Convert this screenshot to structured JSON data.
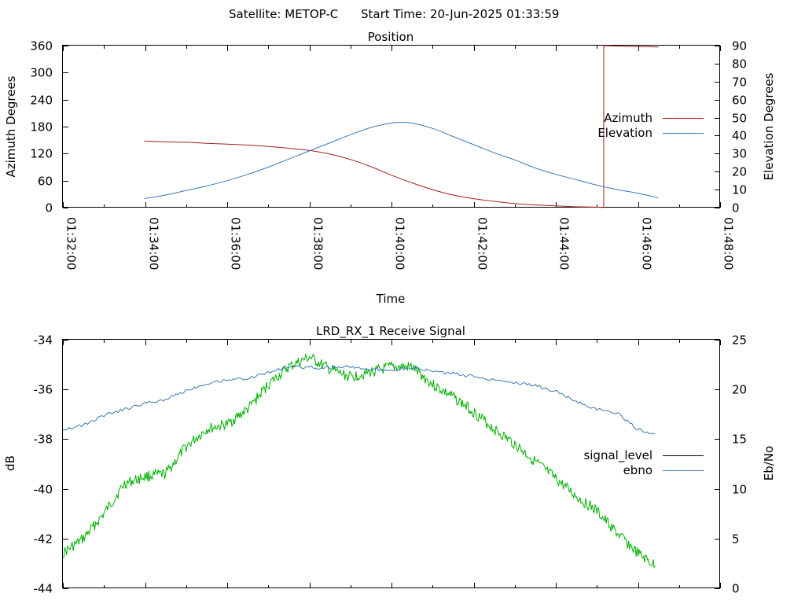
{
  "header": {
    "satellite_text": "Satellite: METOP-C",
    "start_time_text": "Start Time: 20-Jun-2025 01:33:59"
  },
  "chart_data": [
    {
      "type": "line",
      "title": "Position",
      "xlabel": "Time",
      "ylabel": "Azimuth Degrees",
      "y2label": "Elevation Degrees",
      "xlim": [
        "01:32:00",
        "01:48:00"
      ],
      "xticks": [
        "01:32:00",
        "01:34:00",
        "01:36:00",
        "01:38:00",
        "01:40:00",
        "01:42:00",
        "01:44:00",
        "01:46:00",
        "01:48:00"
      ],
      "ylim": [
        0,
        360
      ],
      "yticks": [
        "0",
        "60",
        "120",
        "180",
        "240",
        "300",
        "360"
      ],
      "y2lim": [
        0,
        90
      ],
      "y2ticks": [
        "0",
        "10",
        "20",
        "30",
        "40",
        "50",
        "60",
        "70",
        "80",
        "90"
      ],
      "grid": false,
      "legend_position": "right",
      "series": [
        {
          "name": "Azimuth",
          "axis": "left",
          "color": "#a81c1c",
          "x": [
            "01:33:59",
            "01:34:30",
            "01:35:00",
            "01:35:30",
            "01:36:00",
            "01:36:30",
            "01:37:00",
            "01:37:30",
            "01:38:00",
            "01:38:30",
            "01:39:00",
            "01:39:30",
            "01:40:00",
            "01:40:30",
            "01:41:00",
            "01:41:30",
            "01:42:00",
            "01:42:30",
            "01:43:00",
            "01:43:30",
            "01:44:00",
            "01:44:30",
            "01:45:00",
            "01:45:10",
            "01:45:10",
            "01:45:30",
            "01:46:00",
            "01:46:30"
          ],
          "values": [
            148,
            146,
            145,
            143,
            141,
            139,
            136,
            132,
            127,
            119,
            107,
            91,
            72,
            55,
            40,
            28,
            20,
            14,
            9,
            6,
            4,
            2,
            1,
            0,
            360,
            359,
            358,
            357
          ]
        },
        {
          "name": "Elevation",
          "axis": "right",
          "color": "#3a78b5",
          "x": [
            "01:33:59",
            "01:34:30",
            "01:35:00",
            "01:35:30",
            "01:36:00",
            "01:36:30",
            "01:37:00",
            "01:37:30",
            "01:38:00",
            "01:38:30",
            "01:39:00",
            "01:39:30",
            "01:40:00",
            "01:40:15",
            "01:40:30",
            "01:41:00",
            "01:41:30",
            "01:42:00",
            "01:42:30",
            "01:43:00",
            "01:43:30",
            "01:44:00",
            "01:44:30",
            "01:45:00",
            "01:45:30",
            "01:46:00",
            "01:46:30"
          ],
          "values": [
            5,
            7,
            9.5,
            12,
            15,
            18.5,
            22.5,
            27,
            31.5,
            36,
            40.5,
            44.5,
            47,
            47.3,
            47,
            44,
            39.5,
            35,
            30.5,
            26.5,
            22,
            18.5,
            15.5,
            12.5,
            10,
            8,
            5.5
          ]
        }
      ]
    },
    {
      "type": "line",
      "title": "LRD_RX_1 Receive Signal",
      "ylabel": "dB",
      "y2label": "Eb/No",
      "xlim": [
        "01:32:00",
        "01:48:00"
      ],
      "ylim": [
        -44,
        -34
      ],
      "yticks": [
        "-44",
        "-42",
        "-40",
        "-38",
        "-36",
        "-34"
      ],
      "y2lim": [
        0,
        25
      ],
      "y2ticks": [
        "0",
        "5",
        "10",
        "15",
        "20",
        "25"
      ],
      "grid": false,
      "legend_position": "right",
      "series": [
        {
          "name": "signal_level",
          "axis": "left",
          "color": "#00b000",
          "x": [
            "01:32:00",
            "01:32:30",
            "01:33:00",
            "01:33:30",
            "01:34:00",
            "01:34:30",
            "01:35:00",
            "01:35:30",
            "01:36:00",
            "01:36:30",
            "01:37:00",
            "01:37:30",
            "01:38:00",
            "01:38:30",
            "01:39:00",
            "01:39:30",
            "01:40:00",
            "01:40:30",
            "01:41:00",
            "01:41:30",
            "01:42:00",
            "01:42:30",
            "01:43:00",
            "01:43:30",
            "01:44:00",
            "01:44:30",
            "01:45:00",
            "01:45:30",
            "01:46:00",
            "01:46:25"
          ],
          "values": [
            -42.6,
            -42.0,
            -41.0,
            -39.8,
            -39.5,
            -39.4,
            -38.3,
            -37.6,
            -37.4,
            -36.8,
            -35.8,
            -35.1,
            -34.7,
            -35.2,
            -35.5,
            -35.3,
            -35.1,
            -35.1,
            -35.8,
            -36.3,
            -36.9,
            -37.6,
            -38.2,
            -38.9,
            -39.6,
            -40.3,
            -40.9,
            -41.8,
            -42.6,
            -43.1
          ]
        },
        {
          "name": "ebno",
          "axis": "right",
          "color": "#3a78b5",
          "x": [
            "01:32:00",
            "01:32:30",
            "01:33:00",
            "01:33:30",
            "01:34:00",
            "01:34:30",
            "01:35:00",
            "01:35:30",
            "01:36:00",
            "01:36:30",
            "01:37:00",
            "01:37:30",
            "01:38:00",
            "01:38:30",
            "01:39:00",
            "01:39:30",
            "01:40:00",
            "01:40:30",
            "01:41:00",
            "01:41:30",
            "01:42:00",
            "01:42:30",
            "01:43:00",
            "01:43:30",
            "01:44:00",
            "01:44:30",
            "01:45:00",
            "01:45:30",
            "01:46:00",
            "01:46:25"
          ],
          "values": [
            16.0,
            16.4,
            17.4,
            18.0,
            18.6,
            19.0,
            19.9,
            20.6,
            21.0,
            21.1,
            21.7,
            22.3,
            22.2,
            22.2,
            22.3,
            22.0,
            22.0,
            22.2,
            21.8,
            21.6,
            21.3,
            21.0,
            20.7,
            20.4,
            19.8,
            18.8,
            18.0,
            17.6,
            16.0,
            15.5
          ]
        }
      ]
    }
  ]
}
